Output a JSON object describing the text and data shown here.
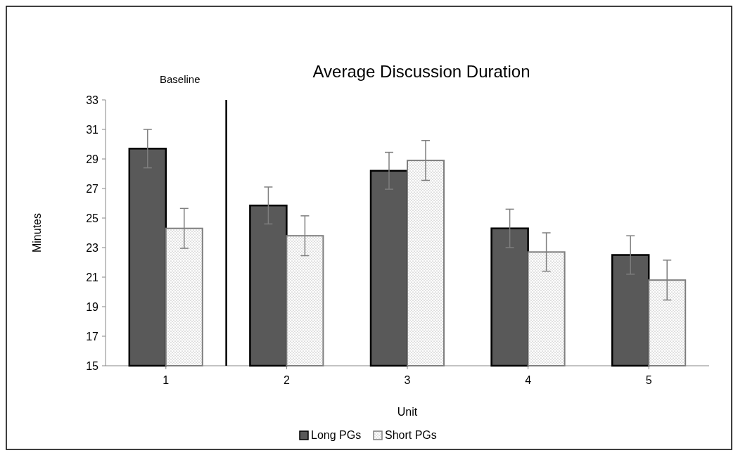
{
  "chart_data": {
    "type": "bar",
    "title": "Average Discussion Duration",
    "xlabel": "Unit",
    "ylabel": "Minutes",
    "x": [
      1,
      2,
      3,
      4,
      5
    ],
    "xlim": [
      0.5,
      5.5
    ],
    "xticks": [
      1,
      2,
      3,
      4,
      5
    ],
    "ylim": [
      15,
      33
    ],
    "yticks": [
      15,
      17,
      19,
      21,
      23,
      25,
      27,
      29,
      31,
      33
    ],
    "series": [
      {
        "name": "Long PGs",
        "color": "#595959",
        "values": [
          29.7,
          25.85,
          28.2,
          24.3,
          22.5
        ],
        "errors": [
          1.3,
          1.25,
          1.25,
          1.3,
          1.3
        ]
      },
      {
        "name": "Short PGs",
        "color": "#7f7f7f",
        "values": [
          24.3,
          23.8,
          28.9,
          22.7,
          20.8
        ],
        "errors": [
          1.35,
          1.35,
          1.35,
          1.3,
          1.35
        ]
      }
    ],
    "ref_lines": [
      {
        "axis": "x",
        "value": 1.5,
        "label": "Baseline",
        "color": "#000000"
      }
    ],
    "grid": false,
    "legend": "bottom"
  }
}
